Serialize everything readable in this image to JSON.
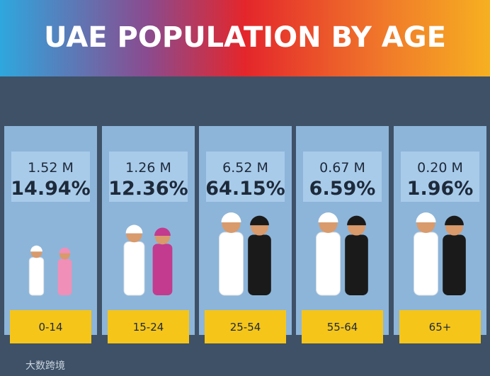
{
  "header": {
    "title": "UAE POPULATION BY AGE"
  },
  "groups": [
    {
      "population": "1.52 M",
      "share": "14.94%",
      "age": "0-14"
    },
    {
      "population": "1.26 M",
      "share": "12.36%",
      "age": "15-24"
    },
    {
      "population": "6.52 M",
      "share": "64.15%",
      "age": "25-54"
    },
    {
      "population": "0.67 M",
      "share": "6.59%",
      "age": "55-64"
    },
    {
      "population": "0.20 M",
      "share": "1.96%",
      "age": "65+"
    }
  ],
  "watermark": "大数跨境"
}
